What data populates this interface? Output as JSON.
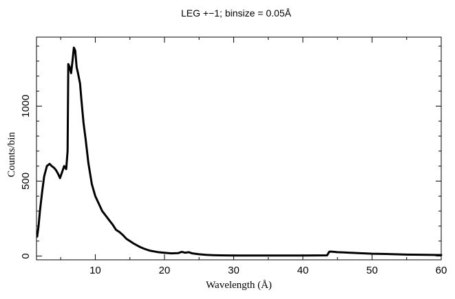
{
  "chart_data": {
    "type": "line",
    "title": "LEG +−1; binsize = 0.05Å",
    "xlabel": "Wavelength (Å)",
    "ylabel": "Counts/bin",
    "xlim": [
      1.5,
      60
    ],
    "ylim": [
      -25,
      1460
    ],
    "grid": false,
    "x_ticks": [
      {
        "value": 10,
        "label": "10"
      },
      {
        "value": 20,
        "label": "20"
      },
      {
        "value": 30,
        "label": "30"
      },
      {
        "value": 40,
        "label": "40"
      },
      {
        "value": 50,
        "label": "50"
      },
      {
        "value": 60,
        "label": "60"
      }
    ],
    "y_ticks": [
      {
        "value": 0,
        "label": "0"
      },
      {
        "value": 500,
        "label": "500"
      },
      {
        "value": 1000,
        "label": "1000"
      }
    ],
    "series": [
      {
        "x": [
          1.6,
          1.8,
          2.0,
          2.3,
          2.6,
          3.0,
          3.4,
          3.7,
          4.0,
          4.3,
          4.6,
          4.9,
          5.2,
          5.5,
          5.8,
          6.0,
          6.1,
          6.3,
          6.5,
          6.7,
          6.9,
          7.1,
          7.3,
          7.5,
          7.8,
          8.0,
          8.3,
          8.6,
          9.0,
          9.5,
          10.0,
          10.5,
          11.0,
          11.5,
          12.0,
          12.5,
          13.0,
          13.5,
          14.0,
          14.5,
          15.0,
          15.5,
          16.0,
          16.5,
          17.0,
          17.5,
          18.0,
          19.0,
          20.0,
          21.0,
          22.0,
          22.5,
          23.0,
          23.5,
          24.0,
          25.0,
          26.0,
          27.0,
          28.0,
          30.0,
          35.0,
          40.0,
          43.5,
          43.8,
          44.0,
          44.5,
          45.0,
          46.0,
          48.0,
          50.0,
          52.0,
          55.0,
          58.0,
          60.0
        ],
        "y": [
          130,
          200,
          300,
          420,
          530,
          600,
          615,
          600,
          590,
          575,
          550,
          520,
          560,
          600,
          580,
          700,
          1280,
          1260,
          1220,
          1300,
          1390,
          1370,
          1260,
          1220,
          1150,
          1040,
          890,
          780,
          620,
          480,
          400,
          350,
          300,
          270,
          240,
          210,
          175,
          160,
          140,
          115,
          100,
          85,
          72,
          60,
          50,
          42,
          35,
          27,
          22,
          18,
          20,
          28,
          22,
          26,
          18,
          12,
          8,
          6,
          5,
          4,
          4,
          4,
          5,
          28,
          30,
          28,
          26,
          24,
          20,
          16,
          14,
          10,
          8,
          7
        ]
      }
    ]
  }
}
